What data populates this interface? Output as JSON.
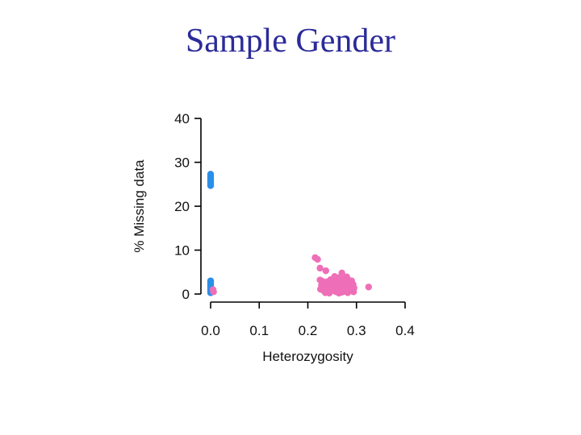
{
  "slide": {
    "title": "Sample Gender"
  },
  "colors": {
    "male": "#2b8fe8",
    "female": "#ee6fb8"
  },
  "chart_data": {
    "type": "scatter",
    "title": "",
    "xlabel": "Heterozygosity",
    "ylabel": "% Missing data",
    "xlim": [
      0.0,
      0.4
    ],
    "ylim": [
      0,
      40
    ],
    "xticks": [
      0.0,
      0.1,
      0.2,
      0.3,
      0.4
    ],
    "xtick_labels": [
      "0.0",
      "0.1",
      "0.2",
      "0.3",
      "0.4"
    ],
    "yticks": [
      0,
      10,
      20,
      30,
      40
    ],
    "ytick_labels": [
      "0",
      "10",
      "20",
      "30",
      "40"
    ],
    "grid": false,
    "legend": "none",
    "series": [
      {
        "color": "#2b8fe8",
        "points": [
          [
            0.0,
            27.3
          ],
          [
            0.0,
            26.9
          ],
          [
            0.0,
            26.5
          ],
          [
            0.0,
            26.1
          ],
          [
            0.0,
            25.8
          ],
          [
            0.0,
            25.5
          ],
          [
            0.0,
            25.2
          ],
          [
            0.0,
            24.9
          ],
          [
            0.0,
            24.7
          ],
          [
            0.0,
            3.0
          ],
          [
            0.0,
            2.7
          ],
          [
            0.0,
            2.4
          ],
          [
            0.0,
            2.1
          ],
          [
            0.0,
            1.8
          ],
          [
            0.0,
            1.5
          ],
          [
            0.0,
            1.2
          ],
          [
            0.0,
            0.9
          ],
          [
            0.0,
            0.6
          ],
          [
            0.0,
            0.3
          ]
        ]
      },
      {
        "color": "#ee6fb8",
        "points": [
          [
            0.005,
            1.0
          ],
          [
            0.006,
            0.5
          ],
          [
            0.215,
            8.3
          ],
          [
            0.22,
            7.9
          ],
          [
            0.225,
            5.9
          ],
          [
            0.237,
            5.3
          ],
          [
            0.27,
            4.8
          ],
          [
            0.262,
            3.7
          ],
          [
            0.28,
            3.9
          ],
          [
            0.255,
            4.0
          ],
          [
            0.29,
            3.0
          ],
          [
            0.325,
            1.6
          ],
          [
            0.225,
            3.2
          ],
          [
            0.23,
            2.9
          ],
          [
            0.235,
            2.5
          ],
          [
            0.24,
            2.2
          ],
          [
            0.245,
            1.9
          ],
          [
            0.25,
            1.6
          ],
          [
            0.255,
            1.3
          ],
          [
            0.26,
            1.0
          ],
          [
            0.265,
            0.7
          ],
          [
            0.27,
            0.4
          ],
          [
            0.275,
            2.6
          ],
          [
            0.28,
            2.3
          ],
          [
            0.285,
            2.0
          ],
          [
            0.29,
            1.7
          ],
          [
            0.295,
            1.4
          ],
          [
            0.226,
            1.1
          ],
          [
            0.232,
            0.8
          ],
          [
            0.238,
            0.5
          ],
          [
            0.244,
            0.2
          ],
          [
            0.25,
            3.0
          ],
          [
            0.256,
            2.7
          ],
          [
            0.262,
            2.4
          ],
          [
            0.268,
            2.1
          ],
          [
            0.274,
            1.8
          ],
          [
            0.28,
            1.5
          ],
          [
            0.286,
            1.2
          ],
          [
            0.292,
            0.9
          ],
          [
            0.228,
            2.0
          ],
          [
            0.234,
            1.7
          ],
          [
            0.24,
            1.4
          ],
          [
            0.246,
            1.1
          ],
          [
            0.252,
            0.8
          ],
          [
            0.258,
            0.5
          ],
          [
            0.264,
            0.2
          ],
          [
            0.27,
            2.9
          ],
          [
            0.276,
            0.6
          ],
          [
            0.282,
            0.3
          ],
          [
            0.288,
            2.8
          ],
          [
            0.294,
            0.5
          ],
          [
            0.24,
            2.8
          ],
          [
            0.247,
            3.3
          ],
          [
            0.26,
            3.1
          ],
          [
            0.272,
            3.4
          ],
          [
            0.284,
            3.2
          ],
          [
            0.291,
            2.5
          ],
          [
            0.231,
            1.3
          ],
          [
            0.243,
            0.9
          ],
          [
            0.253,
            2.2
          ],
          [
            0.263,
            1.5
          ],
          [
            0.273,
            1.1
          ],
          [
            0.283,
            0.8
          ],
          [
            0.293,
            2.2
          ],
          [
            0.236,
            0.3
          ],
          [
            0.257,
            1.9
          ],
          [
            0.267,
            0.4
          ]
        ]
      }
    ]
  }
}
